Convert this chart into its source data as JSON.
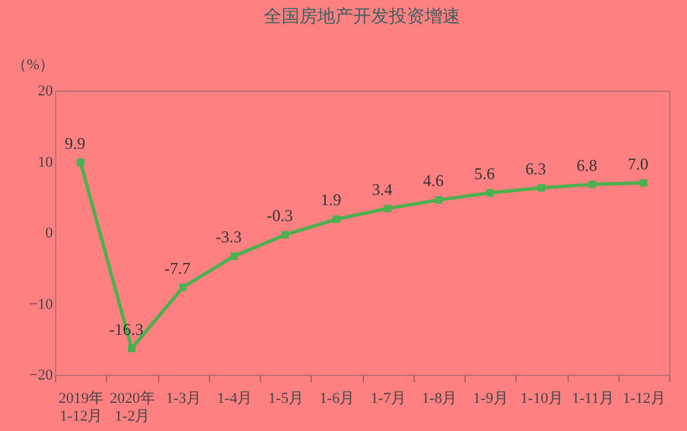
{
  "chart_data": {
    "type": "line",
    "title": "全国房地产开发投资增速",
    "ylabel": "（%）",
    "categories": [
      "2019年\n1-12月",
      "2020年\n1-2月",
      "1-3月",
      "1-4月",
      "1-5月",
      "1-6月",
      "1-7月",
      "1-8月",
      "1-9月",
      "1-10月",
      "1-11月",
      "1-12月"
    ],
    "series": [
      {
        "color": "#4caf50",
        "values": [
          9.9,
          -16.3,
          -7.7,
          -3.3,
          -0.3,
          1.9,
          3.4,
          4.6,
          5.6,
          6.3,
          6.8,
          7.0
        ],
        "value_labels": [
          "9.9",
          "-16.3",
          "-7.7",
          "-3.3",
          "-0.3",
          "1.9",
          "3.4",
          "4.6",
          "5.6",
          "6.3",
          "6.8",
          "7.0"
        ]
      }
    ],
    "ylim": [
      -20,
      20
    ],
    "yticks": [
      -20,
      -10,
      0,
      10,
      20
    ],
    "grid": false,
    "legend": false,
    "marker": "square",
    "line_style": "solid"
  }
}
